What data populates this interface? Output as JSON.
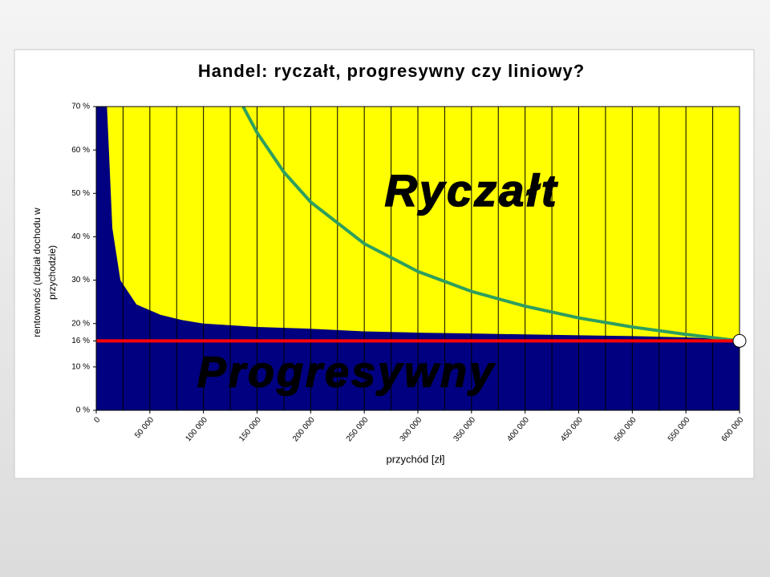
{
  "chart_data": {
    "type": "area-line",
    "title": "Handel: ryczałt, progresywny czy liniowy?",
    "xlabel": "przychód [zł]",
    "ylabel": [
      "rentowność (udział dochodu w",
      "przychodzie)"
    ],
    "xlim": [
      0,
      600000
    ],
    "ylim": [
      0,
      70
    ],
    "xticks": [
      0,
      {
        "value": 50000,
        "label": "50 000"
      },
      {
        "value": 100000,
        "label": "100 000"
      },
      {
        "value": 150000,
        "label": "150 000"
      },
      {
        "value": 200000,
        "label": "200 000"
      },
      {
        "value": 250000,
        "label": "250 000"
      },
      {
        "value": 300000,
        "label": "300 000"
      },
      {
        "value": 350000,
        "label": "350 000"
      },
      {
        "value": 400000,
        "label": "400 000"
      },
      {
        "value": 450000,
        "label": "450 000"
      },
      {
        "value": 500000,
        "label": "500 000"
      },
      {
        "value": 550000,
        "label": "550 000"
      },
      {
        "value": 600000,
        "label": "600 000"
      }
    ],
    "xminor": [
      25000,
      75000,
      125000,
      175000,
      225000,
      275000,
      325000,
      375000,
      425000,
      475000,
      525000,
      575000
    ],
    "yticks": [
      {
        "value": 0,
        "label": "0 %"
      },
      {
        "value": 10,
        "label": "10 %"
      },
      {
        "value": 16,
        "label": "16 %"
      },
      {
        "value": 20,
        "label": "20 %"
      },
      {
        "value": 30,
        "label": "30 %"
      },
      {
        "value": 40,
        "label": "40 %"
      },
      {
        "value": 50,
        "label": "50 %"
      },
      {
        "value": 60,
        "label": "60 %"
      },
      {
        "value": 70,
        "label": "70 %"
      }
    ],
    "background": "#ffff00",
    "grid": "x",
    "series": [
      {
        "name": "Progresywny",
        "kind": "area",
        "color": "#000080",
        "x": [
          0,
          10000,
          15000,
          22500,
          37500,
          60000,
          80000,
          100000,
          150000,
          200000,
          250000,
          300000,
          350000,
          400000,
          450000,
          500000,
          550000,
          600000
        ],
        "values": [
          70,
          70,
          42,
          30,
          24.4,
          22,
          20.8,
          20,
          19.2,
          18.8,
          18.2,
          17.9,
          17.7,
          17.5,
          17.3,
          17.1,
          16.8,
          16.3
        ]
      },
      {
        "name": "Ryczałt",
        "kind": "line",
        "color": "#2e9e5e",
        "x": [
          137000,
          150000,
          175000,
          200000,
          250000,
          300000,
          350000,
          400000,
          450000,
          500000,
          550000,
          600000
        ],
        "values": [
          70,
          64,
          54.9,
          48,
          38.4,
          32,
          27.4,
          24,
          21.3,
          19.2,
          17.5,
          16
        ]
      },
      {
        "kind": "line",
        "color": "#ff0000",
        "x": [
          0,
          600000
        ],
        "values": [
          16,
          16
        ]
      }
    ],
    "marker": {
      "x": 600000,
      "y": 16
    }
  }
}
